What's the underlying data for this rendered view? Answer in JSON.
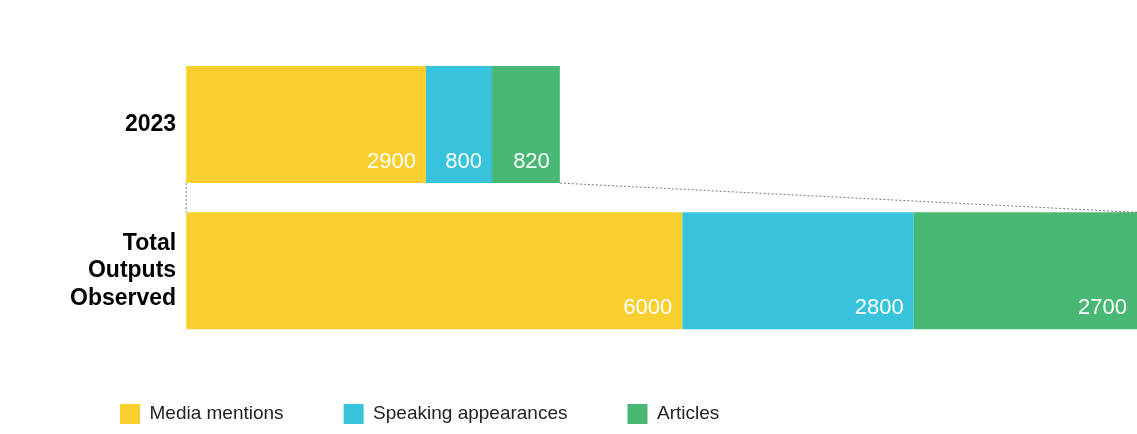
{
  "chart_data": {
    "type": "bar",
    "orientation": "horizontal",
    "stacked": true,
    "data_labels": true,
    "grid": false,
    "legend": "bottom",
    "categories": [
      "2023",
      "Total Outputs Observed"
    ],
    "series": [
      {
        "name": "Media mentions",
        "color": "#f9ce2f",
        "values": [
          2900,
          6000
        ]
      },
      {
        "name": "Speaking appearances",
        "color": "#38c3dc",
        "values": [
          800,
          2800
        ]
      },
      {
        "name": "Articles",
        "color": "#48b874",
        "values": [
          820,
          2700
        ]
      }
    ]
  }
}
